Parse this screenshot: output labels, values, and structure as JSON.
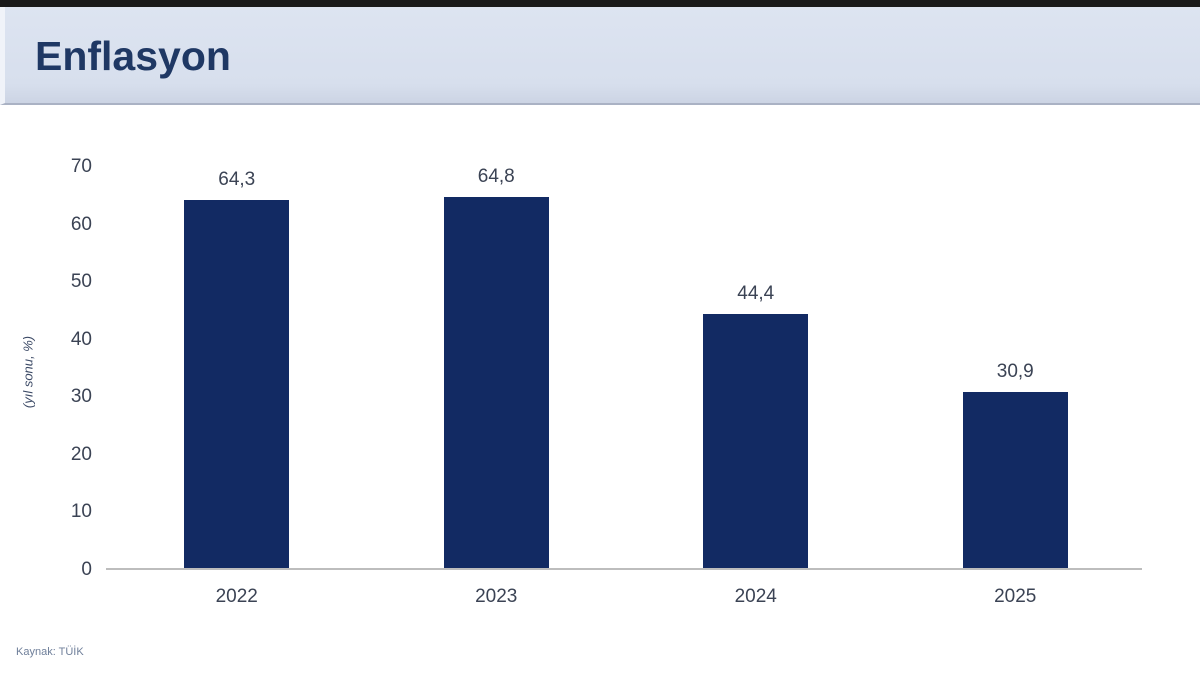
{
  "header": {
    "title": "Enflasyon"
  },
  "footer": {
    "source": "Kaynak: TÜİK"
  },
  "chart_data": {
    "type": "bar",
    "title": "Enflasyon",
    "categories": [
      "2022",
      "2023",
      "2024",
      "2025"
    ],
    "values": [
      64.3,
      64.8,
      44.4,
      30.9
    ],
    "value_labels": [
      "64,3",
      "64,8",
      "44,4",
      "30,9"
    ],
    "xlabel": "",
    "ylabel": "(yıl sonu, %)",
    "ylim": [
      0,
      70
    ],
    "yticks": [
      0,
      10,
      20,
      30,
      40,
      50,
      60,
      70
    ],
    "grid": false,
    "legend_position": "none",
    "bar_color": "#122a63",
    "label_color": "#3b4354"
  }
}
